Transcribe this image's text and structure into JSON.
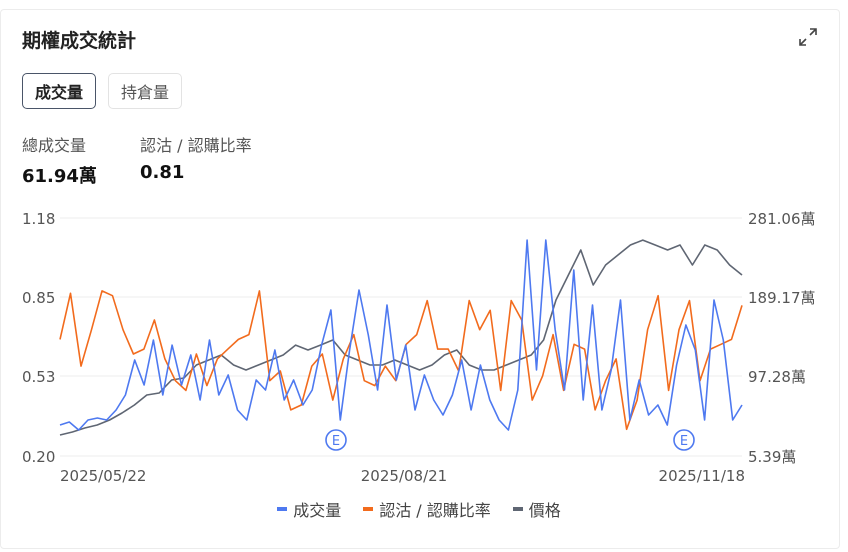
{
  "title": "期權成交統計",
  "tabs": [
    {
      "label": "成交量",
      "active": true
    },
    {
      "label": "持倉量",
      "active": false
    }
  ],
  "stats": [
    {
      "label": "總成交量",
      "value": "61.94萬"
    },
    {
      "label": "認沽 / 認購比率",
      "value": "0.81"
    }
  ],
  "icons": {
    "expand": "expand-icon",
    "earnings": "earnings-marker-icon"
  },
  "chart_data": {
    "type": "line",
    "left_axis": {
      "ticks": [
        "1.18",
        "0.85",
        "0.53",
        "0.20"
      ],
      "range": [
        0.2,
        1.18
      ]
    },
    "right_axis": {
      "ticks": [
        "281.06萬",
        "189.17萬",
        "97.28萬",
        "5.39萬"
      ],
      "range": [
        5.39,
        281.06
      ],
      "unit": "萬"
    },
    "x_ticks": [
      "2025/05/22",
      "2025/08/21",
      "2025/11/18"
    ],
    "grid": true,
    "legend_placement": "bottom",
    "earnings_markers": [
      {
        "label": "E"
      },
      {
        "label": "E"
      }
    ],
    "series": [
      {
        "name": "成交量",
        "color": "#4e79f0",
        "axis": "right",
        "values": [
          41.3,
          44.8,
          35.5,
          47.1,
          49.4,
          47.1,
          58.7,
          76.0,
          116.6,
          87.6,
          139.7,
          76.0,
          133.9,
          87.6,
          122.4,
          70.2,
          139.7,
          76.0,
          99.2,
          58.7,
          47.1,
          93.4,
          81.8,
          128.2,
          70.2,
          93.4,
          64.5,
          81.8,
          133.9,
          174.5,
          47.1,
          128.2,
          197.7,
          145.5,
          81.8,
          180.3,
          93.4,
          133.9,
          58.7,
          99.2,
          70.2,
          52.9,
          76.0,
          116.6,
          58.7,
          110.8,
          70.2,
          47.1,
          35.5,
          81.8,
          255.5,
          105.0,
          255.5,
          151.3,
          81.8,
          220.8,
          70.2,
          180.3,
          58.7,
          105.0,
          186.1,
          47.1,
          93.4,
          52.9,
          64.5,
          41.3,
          110.8,
          157.1,
          128.2,
          47.1,
          186.1,
          139.7,
          47.1,
          64.5
        ]
      },
      {
        "name": "認沽 / 認購比率",
        "color": "#f26b1d",
        "axis": "left",
        "values": [
          0.68,
          0.87,
          0.57,
          0.72,
          0.88,
          0.86,
          0.72,
          0.62,
          0.64,
          0.76,
          0.6,
          0.51,
          0.47,
          0.62,
          0.49,
          0.6,
          0.64,
          0.68,
          0.7,
          0.88,
          0.51,
          0.55,
          0.39,
          0.41,
          0.57,
          0.62,
          0.43,
          0.6,
          0.7,
          0.51,
          0.49,
          0.57,
          0.51,
          0.66,
          0.7,
          0.84,
          0.64,
          0.64,
          0.55,
          0.84,
          0.72,
          0.8,
          0.47,
          0.84,
          0.76,
          0.43,
          0.53,
          0.7,
          0.47,
          0.66,
          0.64,
          0.39,
          0.51,
          0.6,
          0.31,
          0.43,
          0.72,
          0.86,
          0.47,
          0.72,
          0.84,
          0.51,
          0.64,
          0.66,
          0.68,
          0.82
        ]
      },
      {
        "name": "價格",
        "color": "#5f6673",
        "axis": "right",
        "values": [
          29.7,
          33.2,
          37.8,
          41.3,
          47.1,
          55.2,
          64.5,
          76.0,
          78.4,
          93.4,
          95.7,
          110.8,
          116.6,
          122.4,
          110.8,
          105.0,
          110.8,
          116.6,
          122.4,
          133.9,
          128.2,
          133.9,
          139.7,
          122.4,
          116.6,
          110.8,
          110.8,
          116.6,
          110.8,
          105.0,
          110.8,
          122.4,
          128.2,
          110.8,
          105.0,
          105.0,
          110.8,
          116.6,
          122.4,
          139.7,
          186.1,
          215.0,
          244.0,
          203.5,
          226.6,
          238.2,
          249.8,
          255.5,
          249.8,
          244.0,
          249.8,
          226.6,
          249.8,
          244.0,
          226.6,
          215.0
        ]
      }
    ]
  }
}
